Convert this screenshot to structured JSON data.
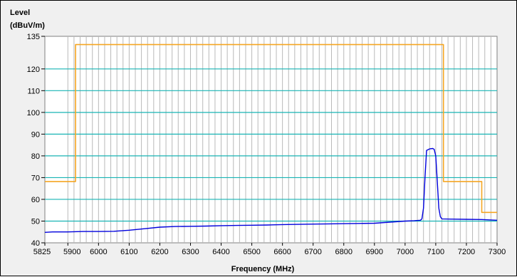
{
  "chart_data": {
    "type": "line",
    "ylabel_line1": "Level",
    "ylabel_line2": "(dBuV/m)",
    "xlabel": "Frequency (MHz)",
    "xlim": [
      5825,
      7300
    ],
    "ylim": [
      40,
      135
    ],
    "x_ticks": [
      "5825",
      "5900",
      "6000",
      "6100",
      "6200",
      "6300",
      "6400",
      "6500",
      "6600",
      "6700",
      "6800",
      "6900",
      "7000",
      "7100",
      "7200",
      "7300"
    ],
    "y_ticks": [
      "40",
      "50",
      "60",
      "70",
      "80",
      "90",
      "100",
      "110",
      "120",
      "135"
    ],
    "grid": true,
    "colors": {
      "background": "#f0f0f0",
      "plot_area": "#ffffff",
      "major_grid": "#18b4b4",
      "minor_grid": "#b9b9b9",
      "limit_line": "#f5a623",
      "measurement": "#0000dd"
    },
    "series": [
      {
        "name": "",
        "role": "limit",
        "color": "#f5a623",
        "x": [
          5825,
          5925,
          5925,
          7125,
          7125,
          7250,
          7250,
          7300
        ],
        "y": [
          68.2,
          68.2,
          131.2,
          131.2,
          68.2,
          68.2,
          54,
          54
        ]
      },
      {
        "name": "",
        "role": "measurement",
        "color": "#0000dd",
        "x": [
          5825,
          5850,
          5900,
          5950,
          6000,
          6050,
          6100,
          6150,
          6200,
          6250,
          6300,
          6350,
          6400,
          6450,
          6500,
          6550,
          6600,
          6650,
          6700,
          6750,
          6800,
          6850,
          6900,
          6950,
          7000,
          7030,
          7050,
          7055,
          7060,
          7065,
          7070,
          7080,
          7090,
          7095,
          7100,
          7105,
          7110,
          7115,
          7120,
          7150,
          7200,
          7250,
          7300
        ],
        "y": [
          44.8,
          45.0,
          45.0,
          45.2,
          45.2,
          45.3,
          45.8,
          46.5,
          47.2,
          47.5,
          47.6,
          47.7,
          47.9,
          48.0,
          48.1,
          48.2,
          48.4,
          48.5,
          48.6,
          48.7,
          48.8,
          48.9,
          49.0,
          49.5,
          50.0,
          50.2,
          50.4,
          51.0,
          56.0,
          70.0,
          82.5,
          83.2,
          83.4,
          83.0,
          80.0,
          68.0,
          56.0,
          52.0,
          51.0,
          50.9,
          50.8,
          50.7,
          50.4
        ]
      }
    ]
  }
}
